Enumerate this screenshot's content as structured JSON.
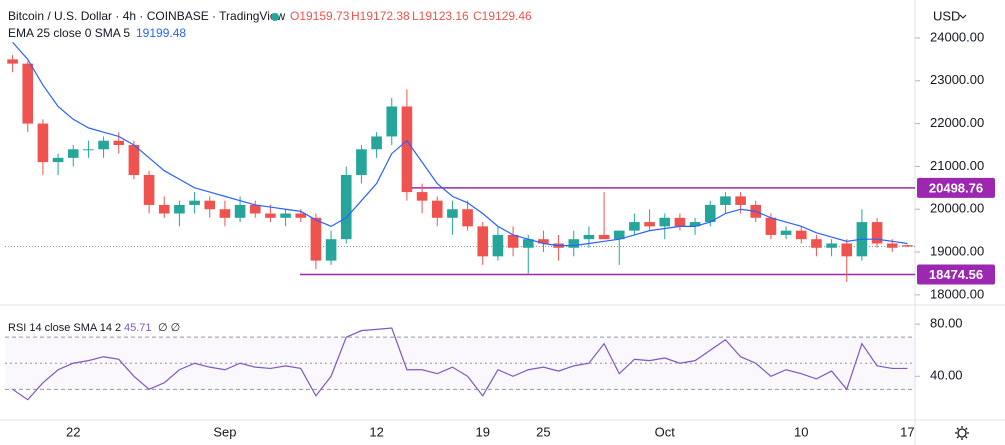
{
  "chart_data": [
    {
      "type": "candlestick",
      "title": "Bitcoin / U.S. Dollar · 4h · COINBASE · TradingView",
      "ohlc_labels": [
        "O19159.73",
        "H19172.38",
        "L19123.16",
        "C19129.46"
      ],
      "currency": "USD",
      "categories": [
        null,
        null,
        null,
        null,
        "22",
        null,
        null,
        null,
        null,
        null,
        null,
        null,
        null,
        null,
        "Sep",
        null,
        null,
        null,
        null,
        null,
        null,
        null,
        null,
        null,
        "12",
        null,
        null,
        null,
        null,
        null,
        null,
        "19",
        null,
        null,
        null,
        "25",
        null,
        null,
        null,
        null,
        null,
        null,
        null,
        "Oct",
        null,
        null,
        null,
        null,
        null,
        null,
        null,
        null,
        "10",
        null,
        null,
        null,
        null,
        null,
        null,
        "17"
      ],
      "open": [
        23500,
        23400,
        22000,
        21100,
        21200,
        21400,
        21400,
        21600,
        21500,
        20800,
        20100,
        19900,
        20100,
        20200,
        20000,
        19800,
        20100,
        19900,
        19800,
        19900,
        19800,
        18800,
        19300,
        20800,
        21400,
        21700,
        22400,
        20400,
        20200,
        19800,
        20000,
        19600,
        18900,
        19400,
        19100,
        19300,
        19200,
        19100,
        19300,
        19400,
        19300,
        19500,
        19700,
        19600,
        19800,
        19600,
        19700,
        20100,
        20300,
        20100,
        19800,
        19400,
        19500,
        19300,
        19100,
        19200,
        18900,
        19700,
        19200,
        19160
      ],
      "high": [
        23600,
        23450,
        22100,
        21300,
        21500,
        21600,
        21700,
        21800,
        21600,
        20900,
        20300,
        20200,
        20400,
        20300,
        20200,
        20300,
        20200,
        20100,
        20000,
        20000,
        19900,
        19500,
        21000,
        21500,
        21800,
        22600,
        22800,
        20600,
        20300,
        20200,
        20200,
        19700,
        19600,
        19600,
        19400,
        19500,
        19400,
        19500,
        19600,
        20400,
        19500,
        19900,
        20000,
        19900,
        19900,
        19800,
        20200,
        20400,
        20400,
        20200,
        19900,
        19600,
        19600,
        19400,
        19300,
        19300,
        20000,
        19800,
        19300,
        19172
      ],
      "low": [
        23200,
        21800,
        20800,
        20800,
        21000,
        21200,
        21200,
        21300,
        20700,
        19900,
        19800,
        19600,
        19900,
        19800,
        19600,
        19700,
        19800,
        19700,
        19600,
        19700,
        18600,
        18700,
        19200,
        20600,
        21200,
        21500,
        20200,
        19900,
        19600,
        19400,
        19500,
        18700,
        18800,
        18900,
        18500,
        19000,
        18800,
        18900,
        19100,
        19300,
        18700,
        19400,
        19500,
        19300,
        19500,
        19400,
        19600,
        19900,
        19900,
        19700,
        19300,
        19300,
        19200,
        18900,
        18900,
        18300,
        18800,
        19100,
        19000,
        19123
      ],
      "close": [
        23400,
        22000,
        21100,
        21200,
        21400,
        21400,
        21600,
        21500,
        20800,
        20100,
        19900,
        20100,
        20200,
        20000,
        19800,
        20100,
        19900,
        19800,
        19900,
        19800,
        18800,
        19300,
        20800,
        21400,
        21700,
        22400,
        20400,
        20200,
        19800,
        20000,
        19600,
        18900,
        19400,
        19100,
        19300,
        19200,
        19100,
        19300,
        19400,
        19300,
        19500,
        19700,
        19600,
        19800,
        19600,
        19700,
        20100,
        20300,
        20100,
        19800,
        19400,
        19500,
        19300,
        19100,
        19200,
        18900,
        19700,
        19200,
        19100,
        19129
      ],
      "up_color": "#26a69a",
      "down_color": "#ef5350",
      "ylim": [
        17880,
        24770
      ],
      "yticks": [
        {
          "value": 18000,
          "label": "18000.00"
        },
        {
          "value": 19000,
          "label": "19000.00"
        },
        {
          "value": 20000,
          "label": "20000.00"
        },
        {
          "value": 21000,
          "label": "21000.00"
        },
        {
          "value": 22000,
          "label": "22000.00"
        },
        {
          "value": 23000,
          "label": "23000.00"
        },
        {
          "value": 24000,
          "label": "24000.00"
        }
      ],
      "indicator": {
        "name": "EMA 25 close 0 SMA 5",
        "value_label": "19199.48",
        "color": "#2962ff",
        "values": [
          23900,
          23500,
          22900,
          22400,
          22100,
          21900,
          21800,
          21700,
          21500,
          21200,
          20900,
          20700,
          20500,
          20400,
          20300,
          20200,
          20100,
          20050,
          20000,
          19950,
          19750,
          19600,
          19800,
          20200,
          20600,
          21300,
          21600,
          21100,
          20600,
          20300,
          20150,
          19900,
          19600,
          19400,
          19300,
          19200,
          19150,
          19150,
          19200,
          19250,
          19300,
          19400,
          19500,
          19550,
          19600,
          19600,
          19700,
          19900,
          20000,
          19950,
          19800,
          19700,
          19600,
          19450,
          19350,
          19250,
          19300,
          19300,
          19250,
          19200
        ]
      },
      "levels": [
        {
          "value": 20498.76,
          "label": "20498.76"
        },
        {
          "value": 18474.56,
          "label": "18474.56"
        }
      ],
      "level_color": "#9c27b0"
    },
    {
      "type": "line",
      "title": "RSI 14 close SMA 14 2",
      "value_label": "45.71",
      "extra_label": "∅ ∅",
      "color": "#7e57c2",
      "values": [
        30,
        22,
        35,
        45,
        50,
        52,
        55,
        53,
        40,
        30,
        35,
        45,
        50,
        47,
        45,
        50,
        47,
        46,
        48,
        46,
        25,
        40,
        70,
        75,
        76,
        77,
        45,
        45,
        42,
        47,
        40,
        25,
        45,
        40,
        45,
        47,
        44,
        48,
        50,
        65,
        42,
        53,
        52,
        54,
        50,
        52,
        60,
        68,
        55,
        50,
        40,
        45,
        42,
        38,
        44,
        30,
        65,
        48,
        46,
        46
      ],
      "ylim": [
        8,
        87
      ],
      "yticks": [
        {
          "value": 40,
          "label": "40.00"
        },
        {
          "value": 80,
          "label": "80.00"
        }
      ],
      "bands": [
        30,
        50,
        70
      ]
    }
  ]
}
